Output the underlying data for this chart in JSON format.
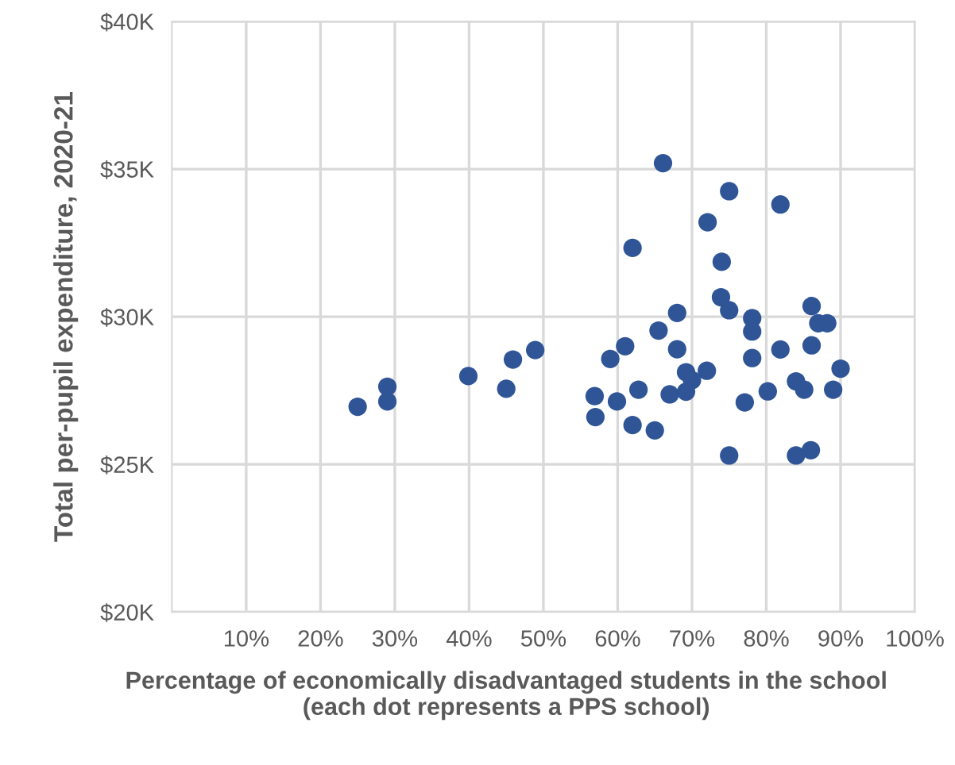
{
  "chart_data": {
    "type": "scatter",
    "xlabel": "Percentage of economically disadvantaged students in the school\n(each dot represents a PPS school)",
    "ylabel": "Total per-pupil expenditure, 2020-21",
    "x": [
      25.0,
      29.0,
      29.0,
      39.9,
      45.0,
      45.9,
      48.9,
      56.9,
      57.0,
      66.1,
      75.0,
      81.9,
      72.1,
      62.0,
      74.0,
      73.9,
      75.0,
      68.0,
      78.1,
      78.1,
      86.1,
      87.0,
      88.2,
      65.5,
      61.0,
      59.0,
      68.0,
      78.1,
      81.9,
      86.1,
      90.0,
      69.2,
      72.0,
      70.0,
      59.9,
      62.8,
      67.0,
      69.2,
      62.0,
      65.0,
      77.1,
      80.2,
      84.0,
      85.1,
      89.0,
      75.0,
      84.0,
      86.0
    ],
    "values": [
      26.95,
      27.63,
      27.13,
      27.99,
      27.56,
      28.55,
      28.87,
      27.31,
      26.6,
      35.2,
      34.25,
      33.8,
      33.2,
      32.33,
      31.86,
      30.66,
      30.22,
      30.13,
      29.95,
      29.5,
      30.36,
      29.78,
      29.78,
      29.53,
      29.0,
      28.57,
      28.9,
      28.6,
      28.89,
      29.03,
      28.24,
      28.12,
      28.17,
      27.85,
      27.13,
      27.53,
      27.37,
      27.46,
      26.33,
      26.15,
      27.1,
      27.47,
      27.81,
      27.53,
      27.53,
      25.3,
      25.3,
      25.48
    ],
    "color": "#2f5597",
    "marker": "circle",
    "grid": true,
    "xlim": [
      0,
      100
    ],
    "xticks": [
      {
        "value": 10,
        "label": "10%"
      },
      {
        "value": 20,
        "label": "20%"
      },
      {
        "value": 30,
        "label": "30%"
      },
      {
        "value": 40,
        "label": "40%"
      },
      {
        "value": 50,
        "label": "50%"
      },
      {
        "value": 60,
        "label": "60%"
      },
      {
        "value": 70,
        "label": "70%"
      },
      {
        "value": 80,
        "label": "80%"
      },
      {
        "value": 90,
        "label": "90%"
      },
      {
        "value": 100,
        "label": "100%"
      }
    ],
    "ylim": [
      20,
      40
    ],
    "yticks": [
      {
        "value": 20,
        "label": "$20K"
      },
      {
        "value": 25,
        "label": "$25K"
      },
      {
        "value": 30,
        "label": "$30K"
      },
      {
        "value": 35,
        "label": "$35K"
      },
      {
        "value": 40,
        "label": "$40K"
      }
    ]
  }
}
